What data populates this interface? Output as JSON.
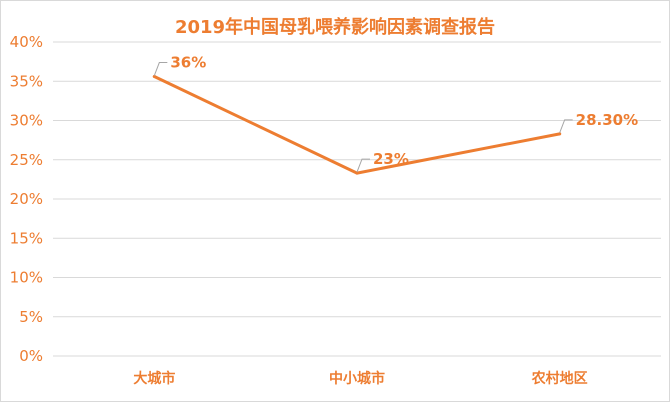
{
  "chart_data": {
    "type": "line",
    "title": "2019年中国母乳喂养影响因素调查报告",
    "categories": [
      "大城市",
      "中小城市",
      "农村地区"
    ],
    "series": [
      {
        "values": [
          35.6,
          23.3,
          28.3
        ]
      }
    ],
    "data_labels": [
      "36%",
      "23%",
      "28.30%"
    ],
    "ylim": [
      0,
      40
    ],
    "yticks": [
      0,
      5,
      10,
      15,
      20,
      25,
      30,
      35,
      40
    ],
    "ytick_labels": [
      "0%",
      "5%",
      "10%",
      "15%",
      "20%",
      "25%",
      "30%",
      "35%",
      "40%"
    ],
    "xlabel": "",
    "ylabel": "",
    "grid": true,
    "legend": "none",
    "colors": {
      "line": "#ED7D31",
      "text": "#ED7D31",
      "grid": "#d9d9d9"
    }
  }
}
